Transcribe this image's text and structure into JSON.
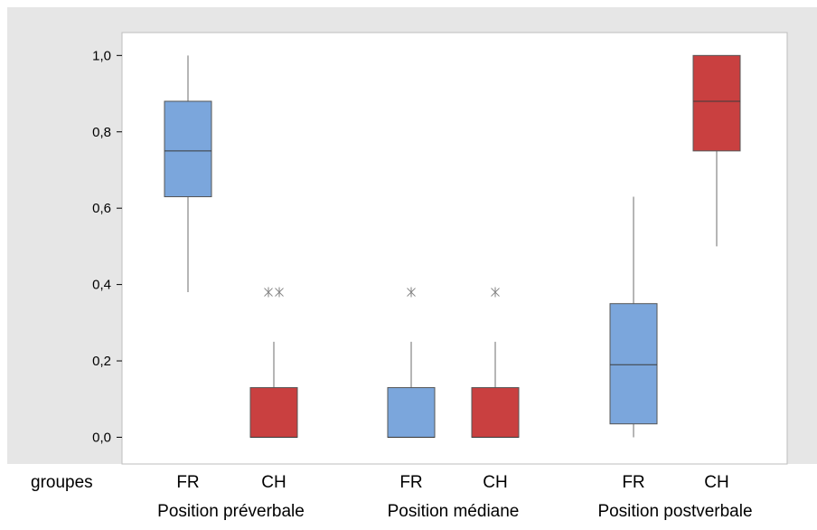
{
  "chart_data": {
    "type": "boxplot",
    "y_axis": {
      "ylim": [
        -0.07,
        1.06
      ],
      "ticks": [
        0.0,
        0.2,
        0.4,
        0.6,
        0.8,
        1.0
      ],
      "tick_labels": [
        "0,0",
        "0,2",
        "0,4",
        "0,6",
        "0,8",
        "1,0"
      ]
    },
    "x_row_title": "groupes",
    "groups": [
      {
        "label": "Position préverbale",
        "boxes": [
          {
            "category": "FR",
            "color": "#7ba6dc",
            "q1": 0.63,
            "median": 0.75,
            "q3": 0.88,
            "whisker_low": 0.38,
            "whisker_high": 1.0,
            "outliers": []
          },
          {
            "category": "CH",
            "color": "#c94040",
            "q1": 0.0,
            "median": 0.0,
            "q3": 0.13,
            "whisker_low": 0.0,
            "whisker_high": 0.25,
            "outliers": [
              0.38,
              0.38
            ]
          }
        ]
      },
      {
        "label": "Position médiane",
        "boxes": [
          {
            "category": "FR",
            "color": "#7ba6dc",
            "q1": 0.0,
            "median": 0.0,
            "q3": 0.13,
            "whisker_low": 0.0,
            "whisker_high": 0.25,
            "outliers": [
              0.38
            ]
          },
          {
            "category": "CH",
            "color": "#c94040",
            "q1": 0.0,
            "median": 0.0,
            "q3": 0.13,
            "whisker_low": 0.0,
            "whisker_high": 0.25,
            "outliers": [
              0.38
            ]
          }
        ]
      },
      {
        "label": "Position postverbale",
        "boxes": [
          {
            "category": "FR",
            "color": "#7ba6dc",
            "q1": 0.035,
            "median": 0.19,
            "q3": 0.35,
            "whisker_low": 0.0,
            "whisker_high": 0.63,
            "outliers": []
          },
          {
            "category": "CH",
            "color": "#c94040",
            "q1": 0.75,
            "median": 0.88,
            "q3": 1.0,
            "whisker_low": 0.5,
            "whisker_high": 1.0,
            "outliers": []
          }
        ]
      }
    ],
    "colors": {
      "outer_background": "#e6e6e6",
      "plot_background": "#ffffff",
      "outlier": "#808080"
    }
  }
}
